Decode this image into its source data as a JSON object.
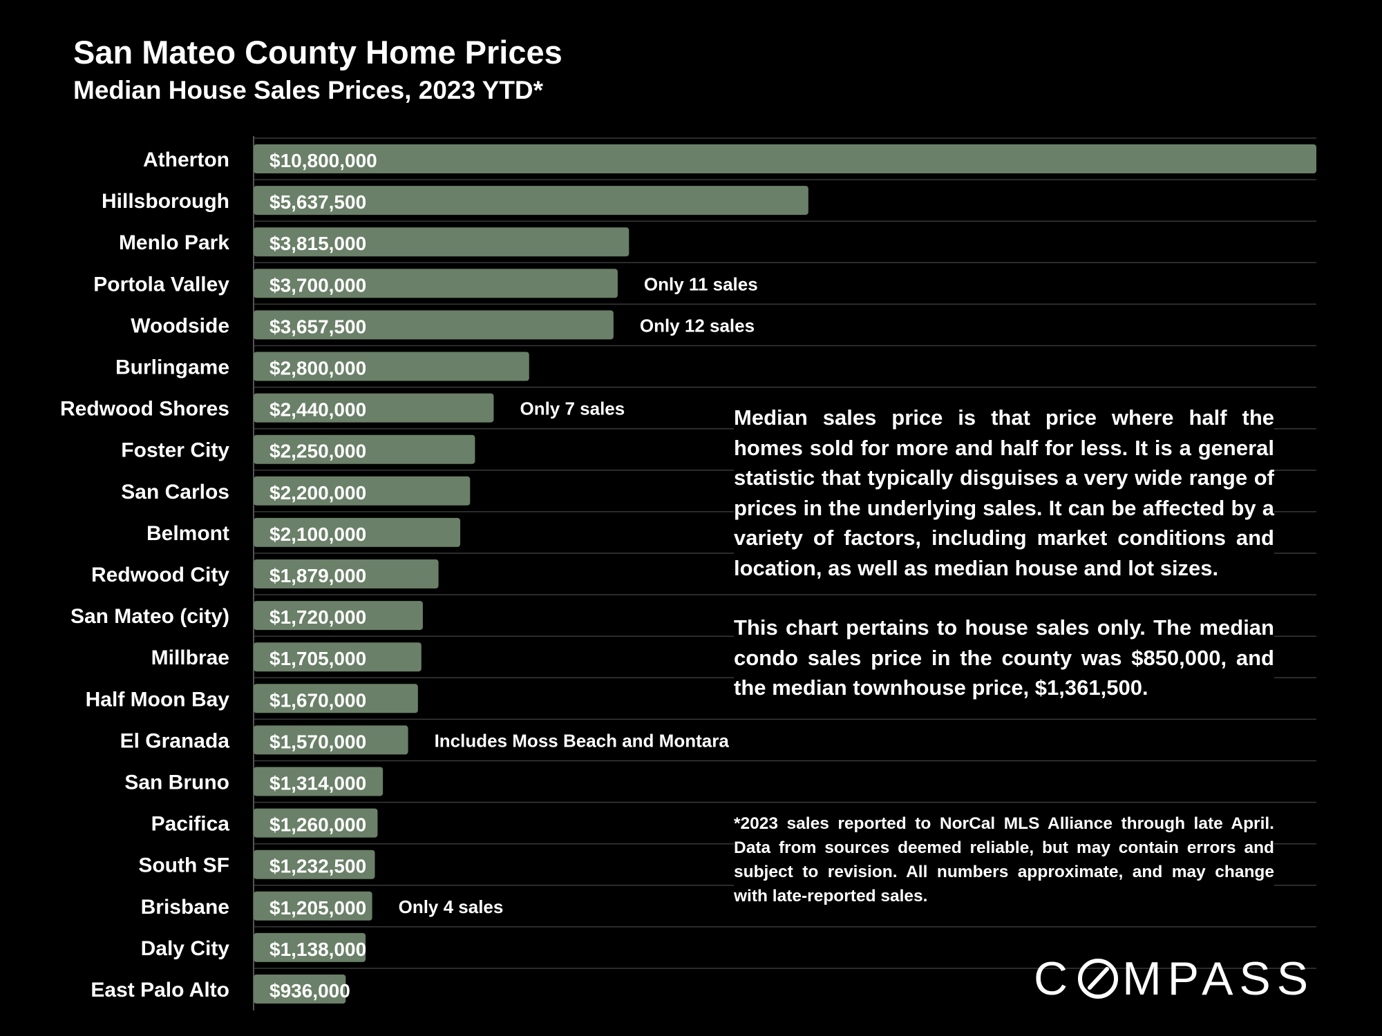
{
  "chart_data": {
    "type": "bar",
    "orientation": "horizontal",
    "title": "San Mateo County Home Prices",
    "subtitle": "Median House Sales Prices, 2023 YTD*",
    "xlabel": "",
    "ylabel": "",
    "xlim": [
      0,
      10800000
    ],
    "grid": true,
    "bar_color": "#6a8068",
    "categories": [
      "Atherton",
      "Hillsborough",
      "Menlo Park",
      "Portola Valley",
      "Woodside",
      "Burlingame",
      "Redwood Shores",
      "Foster City",
      "San Carlos",
      "Belmont",
      "Redwood City",
      "San Mateo (city)",
      "Millbrae",
      "Half Moon Bay",
      "El Granada",
      "San Bruno",
      "Pacifica",
      "South SF",
      "Brisbane",
      "Daly City",
      "East Palo Alto"
    ],
    "values": [
      10800000,
      5637500,
      3815000,
      3700000,
      3657500,
      2800000,
      2440000,
      2250000,
      2200000,
      2100000,
      1879000,
      1720000,
      1705000,
      1670000,
      1570000,
      1314000,
      1260000,
      1232500,
      1205000,
      1138000,
      936000
    ],
    "value_labels": [
      "$10,800,000",
      "$5,637,500",
      "$3,815,000",
      "$3,700,000",
      "$3,657,500",
      "$2,800,000",
      "$2,440,000",
      "$2,250,000",
      "$2,200,000",
      "$2,100,000",
      "$1,879,000",
      "$1,720,000",
      "$1,705,000",
      "$1,670,000",
      "$1,570,000",
      "$1,314,000",
      "$1,260,000",
      "$1,232,500",
      "$1,205,000",
      "$1,138,000",
      "$936,000"
    ],
    "annotations": [
      {
        "category": "Portola Valley",
        "text": "Only 11 sales"
      },
      {
        "category": "Woodside",
        "text": "Only 12 sales"
      },
      {
        "category": "Redwood Shores",
        "text": "Only 7 sales"
      },
      {
        "category": "El Granada",
        "text": "Includes Moss Beach and Montara"
      },
      {
        "category": "Brisbane",
        "text": "Only 4 sales"
      }
    ]
  },
  "text_box": {
    "paragraph1": "Median sales price is that price where half the homes sold for more and half for less. It is a general statistic that typically disguises a very wide range of prices in the underlying sales. It can be affected by a variety of factors, including market conditions and location, as well as median house and lot sizes.",
    "paragraph2": "This chart pertains to house sales only. The median condo sales price in the county was $850,000, and the median townhouse price, $1,361,500."
  },
  "footnote": "*2023 sales reported to NorCal MLS Alliance through late April. Data from sources deemed reliable, but may contain errors and subject to revision. All numbers approximate, and may change with late-reported sales.",
  "logo": {
    "text": "COMPASS",
    "part1": "C",
    "part2": "MPASS"
  }
}
